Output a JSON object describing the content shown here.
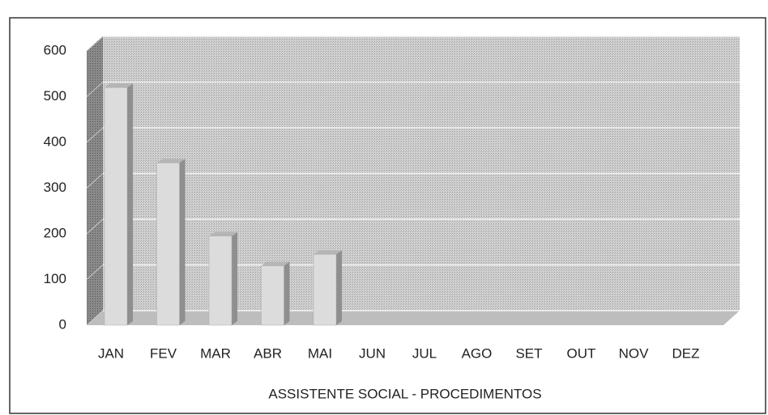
{
  "chart_data": {
    "type": "bar3d",
    "categories": [
      "JAN",
      "FEV",
      "MAR",
      "ABR",
      "MAI",
      "JUN",
      "JUL",
      "AGO",
      "SET",
      "OUT",
      "NOV",
      "DEZ"
    ],
    "values": [
      520,
      355,
      195,
      130,
      155,
      null,
      null,
      null,
      null,
      null,
      null,
      null
    ],
    "color": "#dcdcdc",
    "ylim": [
      0,
      600
    ],
    "yticks": [
      0,
      100,
      200,
      300,
      400,
      500,
      600
    ],
    "grid": true,
    "x_label": "ASSISTENTE SOCIAL - PROCEDIMENTOS"
  }
}
